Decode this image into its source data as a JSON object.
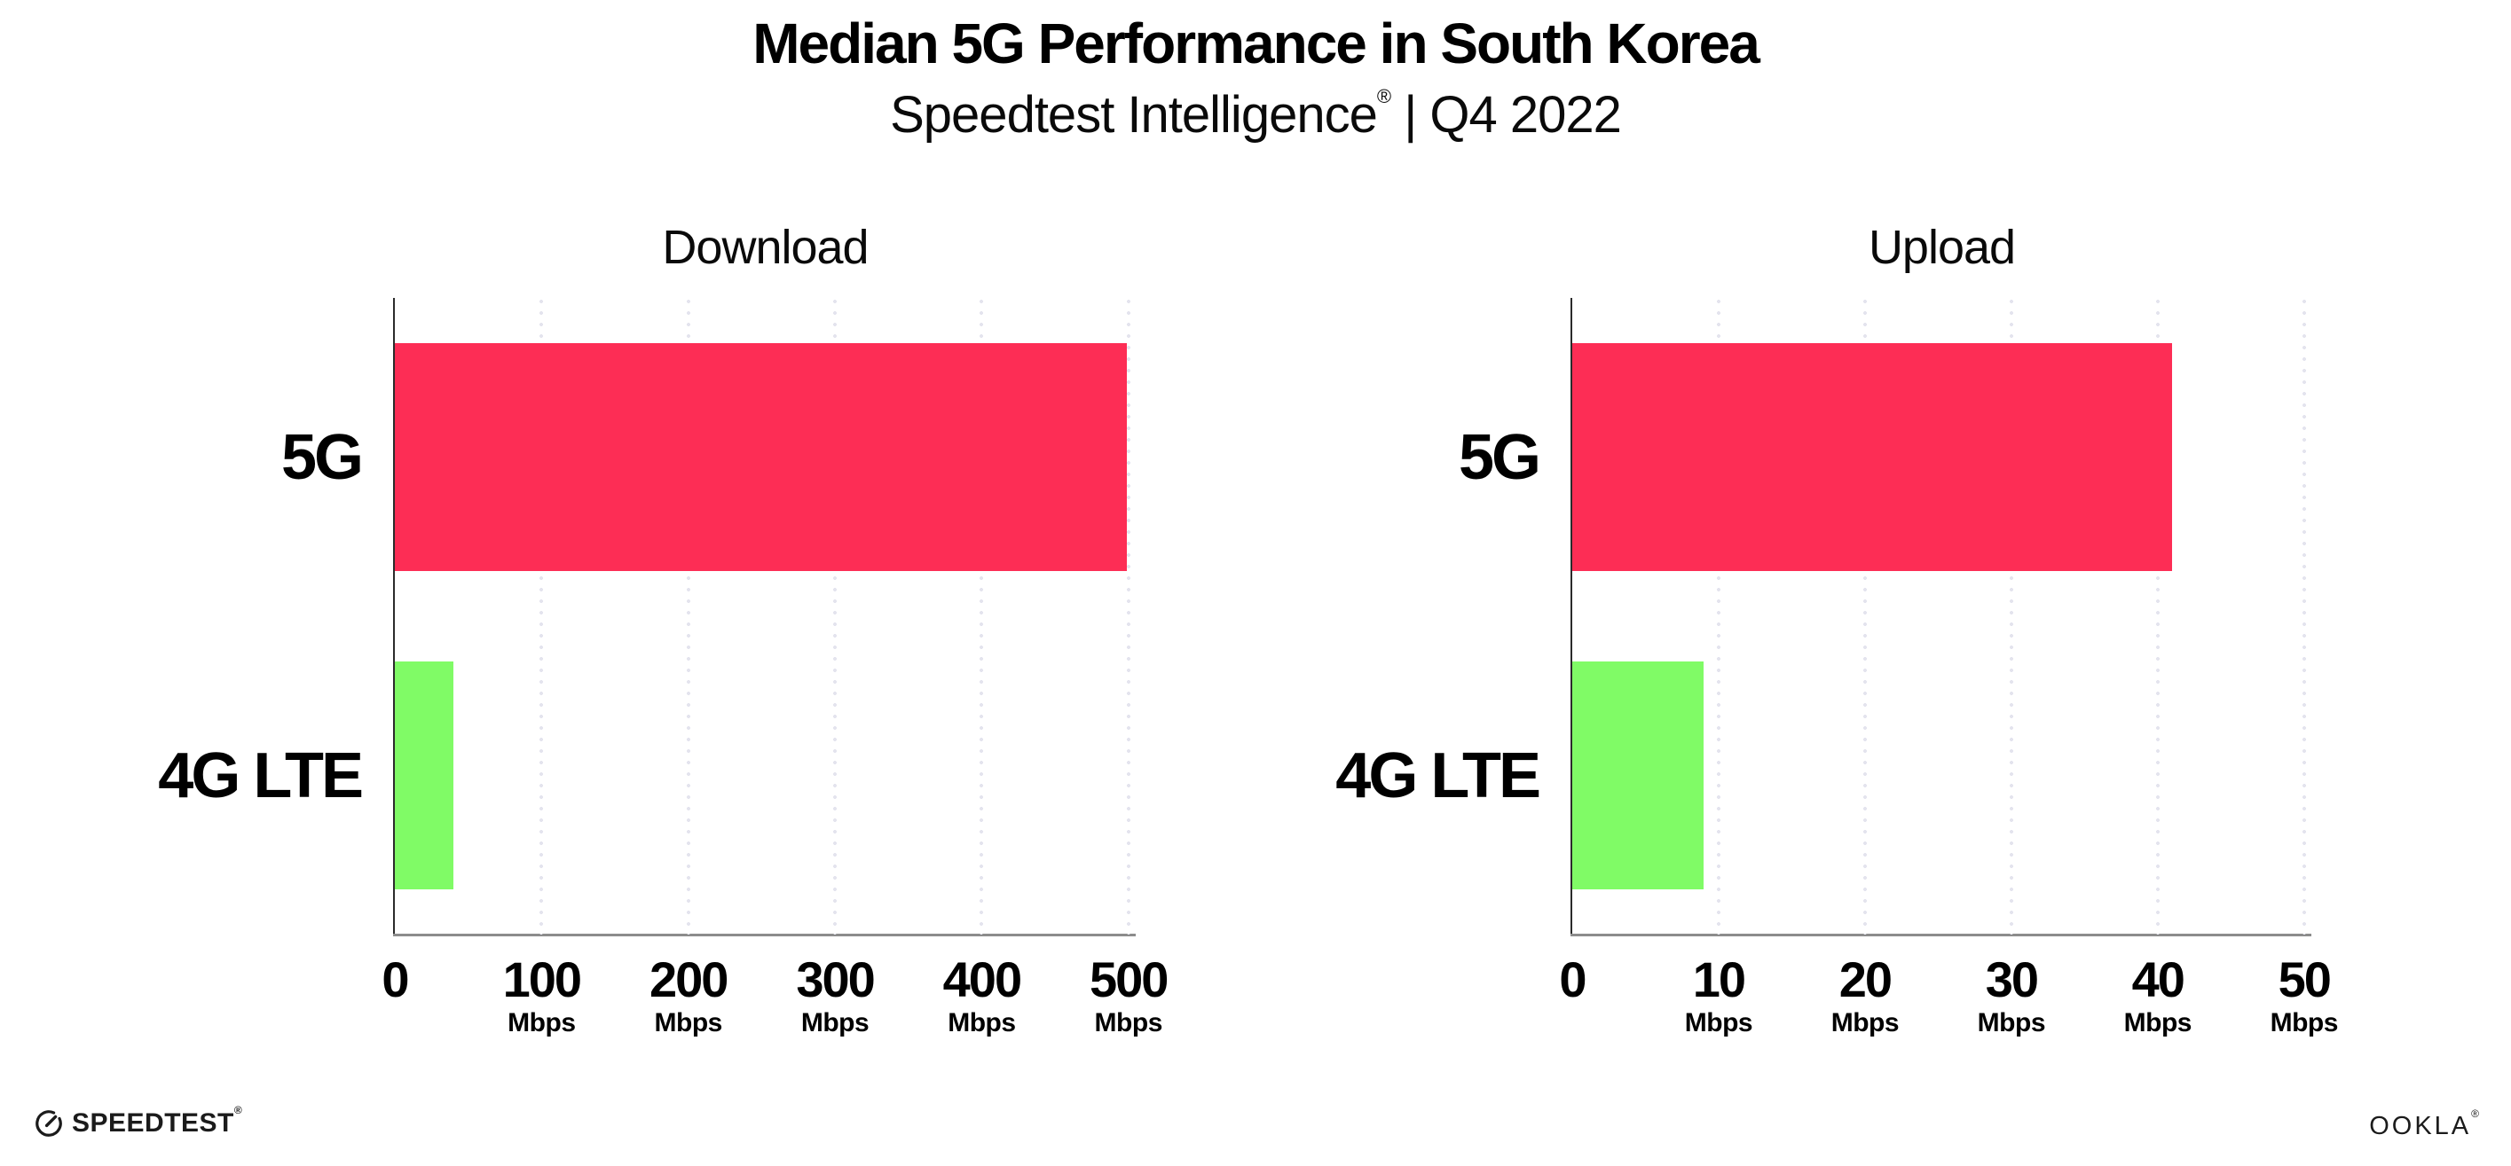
{
  "header": {
    "title": "Median 5G Performance in South Korea",
    "subtitle": {
      "brand": "Speedtest Intelligence",
      "reg_mark": "®",
      "rest": " | Q4 2022"
    }
  },
  "colors": {
    "bar_5g": "#FD2D55",
    "bar_4g_lte": "#80FB66",
    "gridline": "#E4E4EE",
    "axis_line": "#8C8C8C",
    "spine": "#2B2B2B",
    "text": "#000000",
    "background": "#FFFFFF"
  },
  "chart_data": [
    {
      "type": "bar",
      "orientation": "horizontal",
      "title": "Download",
      "unit": "Mbps",
      "categories": [
        "5G",
        "4G LTE"
      ],
      "values": [
        499,
        40
      ],
      "bar_colors": [
        "#FD2D55",
        "#80FB66"
      ],
      "xticks": [
        0,
        100,
        200,
        300,
        400,
        500
      ],
      "xlim": [
        0,
        505
      ],
      "grid": "vertical-dotted",
      "legend": "none"
    },
    {
      "type": "bar",
      "orientation": "horizontal",
      "title": "Upload",
      "unit": "Mbps",
      "categories": [
        "5G",
        "4G LTE"
      ],
      "values": [
        41,
        9
      ],
      "bar_colors": [
        "#FD2D55",
        "#80FB66"
      ],
      "xticks": [
        0,
        10,
        20,
        30,
        40,
        50
      ],
      "xlim": [
        0,
        50.5
      ],
      "grid": "vertical-dotted",
      "legend": "none"
    }
  ],
  "footer": {
    "speedtest": {
      "label": "SPEEDTEST",
      "mark": "®",
      "icon": "speedtest-gauge-icon"
    },
    "ookla": {
      "label": "OOKLA",
      "mark": "®"
    }
  }
}
